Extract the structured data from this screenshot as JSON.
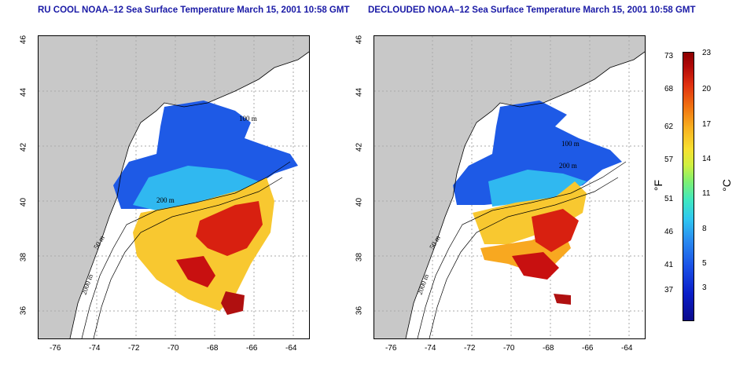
{
  "panels": [
    {
      "title": "RU COOL NOAA–12 Sea Surface Temperature March 15, 2001 10:58 GMT"
    },
    {
      "title": "DECLOUDED NOAA–12 Sea Surface Temperature March 15, 2001 10:58 GMT"
    }
  ],
  "axes": {
    "x_ticks": [
      "-76",
      "-74",
      "-72",
      "-70",
      "-68",
      "-66",
      "-64"
    ],
    "y_ticks": [
      "46",
      "44",
      "42",
      "40",
      "38",
      "36"
    ]
  },
  "contour_labels": [
    "100 m",
    "200 m",
    "50 m",
    "2000 m",
    "100 m",
    "200 m"
  ],
  "colorbar": {
    "fahrenheit_ticks": [
      "73",
      "68",
      "62",
      "57",
      "51",
      "46",
      "41",
      "37"
    ],
    "celsius_ticks": [
      "23",
      "20",
      "17",
      "14",
      "11",
      "8",
      "5",
      "3"
    ],
    "fahrenheit_unit": "°F",
    "celsius_unit": "°C",
    "colors": [
      "#0a0a8c",
      "#1a50e6",
      "#30c8f0",
      "#80f070",
      "#f8e030",
      "#f07010",
      "#8c0000"
    ]
  },
  "land_color": "#c8c8c8"
}
